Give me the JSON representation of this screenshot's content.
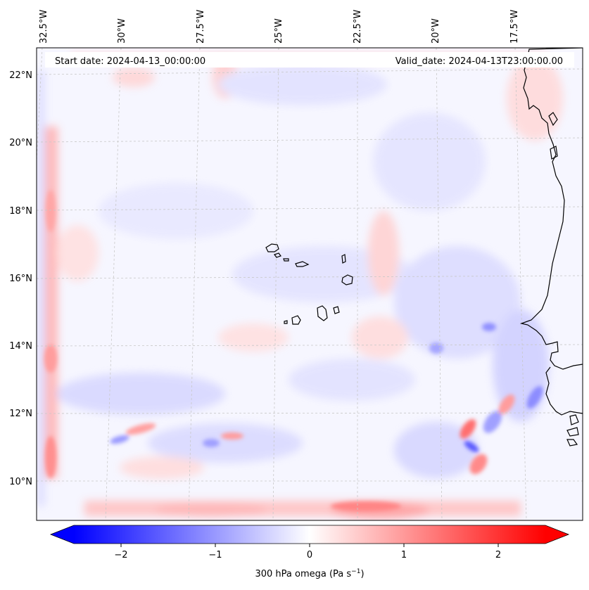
{
  "map": {
    "start_date": "Start date: 2024-04-13_00:00:00",
    "valid_date": "Valid_date: 2024-04-13T23:00:00.00",
    "lon_labels": [
      "32.5°W",
      "30°W",
      "27.5°W",
      "25°W",
      "22.5°W",
      "20°W",
      "17.5°W"
    ],
    "lat_labels": [
      "22°N",
      "20°N",
      "18°N",
      "16°N",
      "14°N",
      "12°N",
      "10°N"
    ],
    "lon_values": [
      -32.5,
      -30,
      -27.5,
      -25,
      -22.5,
      -20,
      -17.5
    ],
    "lat_values": [
      22,
      20,
      18,
      16,
      14,
      12,
      10
    ]
  },
  "colorbar": {
    "label": "300 hPa omega (Pa s",
    "label_sup": "−1",
    "label_end": ")",
    "tick_labels": [
      "−2",
      "−1",
      "0",
      "1",
      "2"
    ],
    "tick_values": [
      -2,
      -1,
      0,
      1,
      2
    ],
    "range": [
      -2.5,
      2.5
    ],
    "colors": {
      "min": "#0000ff",
      "mid": "#ffffff",
      "max": "#ff0000"
    }
  }
}
